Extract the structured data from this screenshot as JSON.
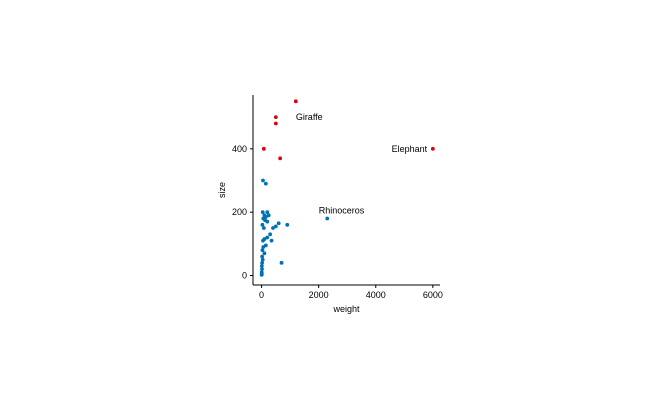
{
  "chart_data": {
    "type": "scatter",
    "title": "",
    "xlabel": "weight",
    "ylabel": "size",
    "xlim": [
      -300,
      6250
    ],
    "ylim": [
      -30,
      570
    ],
    "xticks": [
      0,
      2000,
      4000,
      6000
    ],
    "yticks": [
      0,
      200,
      400
    ],
    "grid": false,
    "colors": {
      "red": "#e0000f",
      "blue": "#0072b2"
    },
    "series": [
      {
        "color": "red",
        "points": [
          {
            "x": 1200,
            "y": 550
          },
          {
            "x": 500,
            "y": 500
          },
          {
            "x": 500,
            "y": 480
          },
          {
            "x": 80,
            "y": 400
          },
          {
            "x": 650,
            "y": 370
          },
          {
            "x": 6000,
            "y": 400
          }
        ]
      },
      {
        "color": "blue",
        "points": [
          {
            "x": 2300,
            "y": 180
          },
          {
            "x": 50,
            "y": 300
          },
          {
            "x": 150,
            "y": 290
          },
          {
            "x": 40,
            "y": 200
          },
          {
            "x": 100,
            "y": 190
          },
          {
            "x": 200,
            "y": 200
          },
          {
            "x": 60,
            "y": 180
          },
          {
            "x": 150,
            "y": 185
          },
          {
            "x": 250,
            "y": 190
          },
          {
            "x": 120,
            "y": 175
          },
          {
            "x": 200,
            "y": 170
          },
          {
            "x": 600,
            "y": 165
          },
          {
            "x": 900,
            "y": 160
          },
          {
            "x": 400,
            "y": 150
          },
          {
            "x": 500,
            "y": 155
          },
          {
            "x": 30,
            "y": 160
          },
          {
            "x": 80,
            "y": 150
          },
          {
            "x": 300,
            "y": 130
          },
          {
            "x": 200,
            "y": 120
          },
          {
            "x": 100,
            "y": 115
          },
          {
            "x": 50,
            "y": 110
          },
          {
            "x": 350,
            "y": 110
          },
          {
            "x": 150,
            "y": 95
          },
          {
            "x": 60,
            "y": 90
          },
          {
            "x": 30,
            "y": 80
          },
          {
            "x": 100,
            "y": 70
          },
          {
            "x": 20,
            "y": 60
          },
          {
            "x": 40,
            "y": 50
          },
          {
            "x": 20,
            "y": 40
          },
          {
            "x": 700,
            "y": 40
          },
          {
            "x": 10,
            "y": 30
          },
          {
            "x": 15,
            "y": 20
          },
          {
            "x": 5,
            "y": 10
          },
          {
            "x": 10,
            "y": 5
          },
          {
            "x": 3,
            "y": 2
          }
        ]
      }
    ],
    "annotations": [
      {
        "text": "Giraffe",
        "x": 1200,
        "y": 500,
        "anchor": "start"
      },
      {
        "text": "Elephant",
        "x": 5800,
        "y": 400,
        "anchor": "end"
      },
      {
        "text": "Rhinoceros",
        "x": 2800,
        "y": 205,
        "anchor": "middle"
      }
    ]
  }
}
